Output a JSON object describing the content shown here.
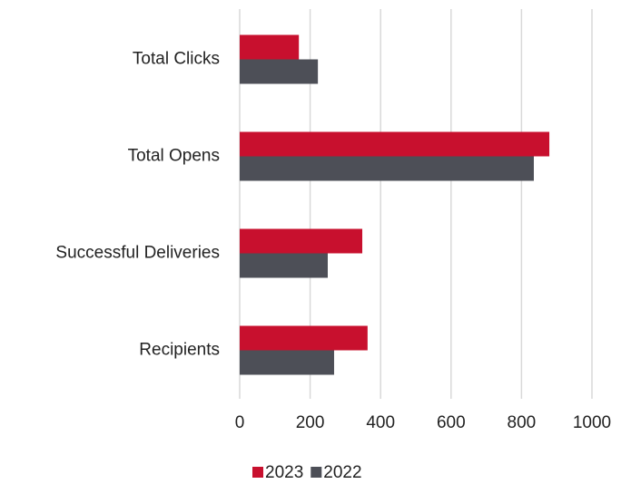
{
  "chart_data": {
    "type": "hbar",
    "categories": [
      "Total Clicks",
      "Total Opens",
      "Successful Deliveries",
      "Recipients"
    ],
    "series": [
      {
        "name": "2023",
        "color": "#c8102e",
        "values": [
          168,
          879,
          348,
          363
        ]
      },
      {
        "name": "2022",
        "color": "#4d4f57",
        "values": [
          222,
          835,
          250,
          268
        ]
      }
    ],
    "xlim": [
      0,
      1000
    ],
    "xticks": [
      0,
      200,
      400,
      600,
      800,
      1000
    ],
    "grid": true,
    "legend": "bottom"
  }
}
